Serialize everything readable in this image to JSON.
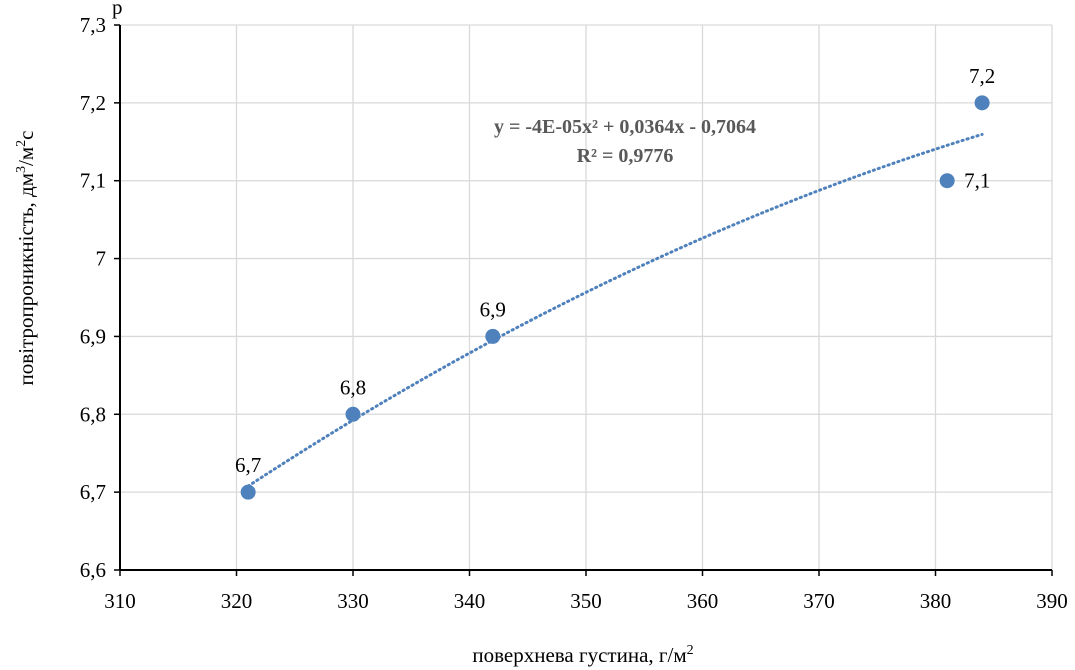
{
  "chart_data": {
    "type": "scatter",
    "title": "",
    "xlabel": "поверхнева густина, г/м",
    "xlabel_sup": "2",
    "ylabel_parts": [
      "повітропроникність, дм",
      "3",
      "/м",
      "2",
      "с"
    ],
    "xlim": [
      310,
      390
    ],
    "ylim": [
      6.6,
      7.3
    ],
    "x_ticks": [
      310,
      320,
      330,
      340,
      350,
      360,
      370,
      380,
      390
    ],
    "y_ticks": [
      6.6,
      6.7,
      6.8,
      6.9,
      7.0,
      7.1,
      7.2,
      7.3
    ],
    "x_tick_labels": [
      "310",
      "320",
      "330",
      "340",
      "350",
      "360",
      "370",
      "380",
      "390"
    ],
    "y_tick_labels": [
      "6,6",
      "6,7",
      "6,8",
      "6,9",
      "7",
      "7,1",
      "7,2",
      "7,3"
    ],
    "grid": true,
    "series": [
      {
        "points": [
          {
            "x": 321,
            "y": 6.7,
            "label": "6,7",
            "label_pos": "above"
          },
          {
            "x": 330,
            "y": 6.8,
            "label": "6,8",
            "label_pos": "above"
          },
          {
            "x": 342,
            "y": 6.9,
            "label": "6,9",
            "label_pos": "above"
          },
          {
            "x": 381,
            "y": 7.1,
            "label": "7,1",
            "label_pos": "right"
          },
          {
            "x": 384,
            "y": 7.2,
            "label": "7,2",
            "label_pos": "above"
          }
        ],
        "color": "#4f81bd"
      }
    ],
    "trendline": {
      "type": "polynomial",
      "order": 2,
      "x_range": [
        321,
        384
      ],
      "equation": "y = -4E-05x² + 0,0364x - 0,7064",
      "r_squared": "R² = 0,9776",
      "color": "#4f81bd",
      "style": "dotted"
    },
    "partial_top_text": "р"
  }
}
